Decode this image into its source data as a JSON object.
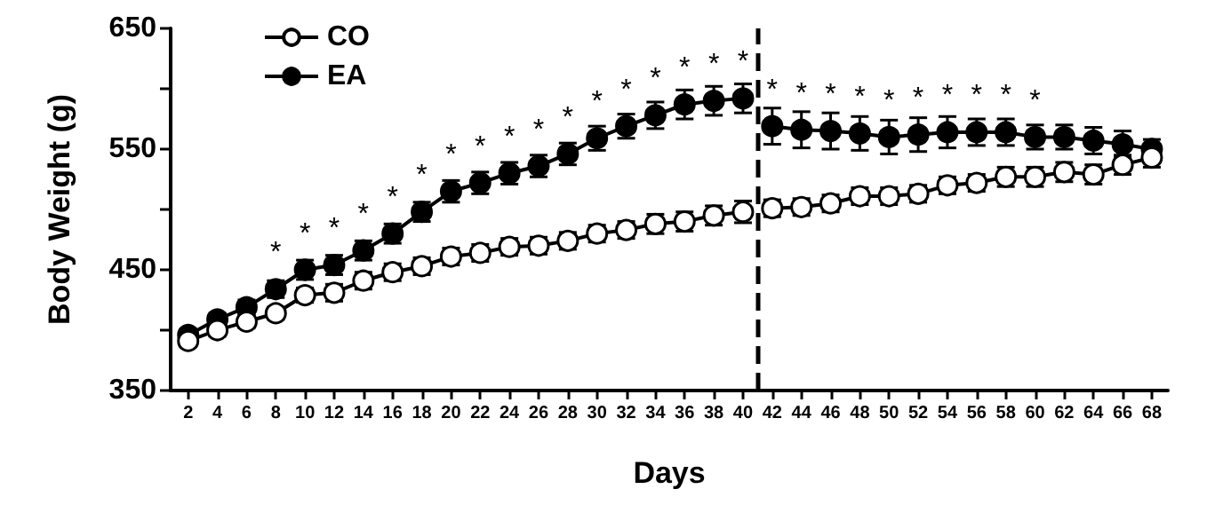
{
  "chart_data": {
    "type": "line",
    "xlabel": "Days",
    "ylabel": "Body Weight (g)",
    "x": [
      2,
      4,
      6,
      8,
      10,
      12,
      14,
      16,
      18,
      20,
      22,
      24,
      26,
      28,
      30,
      32,
      34,
      36,
      38,
      40,
      41,
      42,
      44,
      46,
      48,
      50,
      52,
      54,
      56,
      58,
      60,
      62,
      64,
      66,
      68
    ],
    "xlim": [
      0.8,
      69.1
    ],
    "xticks": [
      2,
      4,
      6,
      8,
      10,
      12,
      14,
      16,
      18,
      20,
      22,
      24,
      26,
      28,
      30,
      32,
      34,
      36,
      38,
      40,
      42,
      44,
      46,
      48,
      50,
      52,
      54,
      56,
      58,
      60,
      62,
      64,
      66,
      68
    ],
    "ylim": [
      350,
      650
    ],
    "yticks": [
      350,
      {
        "value": 400,
        "label": null
      },
      450,
      {
        "value": 500,
        "label": null
      },
      550,
      {
        "value": 600,
        "label": null
      },
      650
    ],
    "marker": "circle",
    "legend": "top left",
    "grid": false,
    "ref_lines": [
      {
        "axis": "x",
        "value": 41,
        "line_style": "dashed",
        "color": "#000000"
      }
    ],
    "series": [
      {
        "name": "CO",
        "color": "#ffffff",
        "values": [
          391,
          400,
          407,
          414,
          429,
          431,
          441,
          448,
          453,
          461,
          464,
          469,
          470,
          474,
          480,
          483,
          488,
          490,
          495,
          498,
          null,
          501,
          502,
          505,
          511,
          511,
          513,
          520,
          522,
          527,
          527,
          531,
          529,
          537,
          543
        ],
        "errors": [
          4,
          5,
          5,
          5,
          6,
          7,
          7,
          7,
          7,
          7,
          7,
          7,
          7,
          7,
          7,
          7,
          8,
          8,
          8,
          9,
          null,
          7,
          7,
          7,
          7,
          7,
          7,
          7,
          7,
          8,
          8,
          8,
          8,
          8,
          8
        ]
      },
      {
        "name": "EA",
        "color": "#000000",
        "values": [
          396,
          409,
          419,
          434,
          450,
          454,
          466,
          480,
          498,
          515,
          522,
          530,
          536,
          546,
          559,
          569,
          578,
          587,
          590,
          592,
          null,
          569,
          566,
          565,
          563,
          560,
          562,
          564,
          564,
          564,
          560,
          560,
          557,
          554,
          550
        ],
        "errors": [
          4,
          5,
          6,
          7,
          8,
          8,
          8,
          8,
          8,
          9,
          9,
          9,
          9,
          9,
          10,
          10,
          11,
          12,
          12,
          12,
          null,
          15,
          15,
          15,
          14,
          14,
          14,
          13,
          11,
          11,
          10,
          10,
          11,
          11,
          8
        ],
        "value_labels": [
          null,
          null,
          null,
          "*",
          "*",
          "*",
          "*",
          "*",
          "*",
          "*",
          "*",
          "*",
          "*",
          "*",
          "*",
          "*",
          "*",
          "*",
          "*",
          "*",
          null,
          "*",
          "*",
          "*",
          "*",
          "*",
          "*",
          "*",
          "*",
          "*",
          "*",
          null,
          null,
          null,
          null
        ]
      }
    ]
  }
}
